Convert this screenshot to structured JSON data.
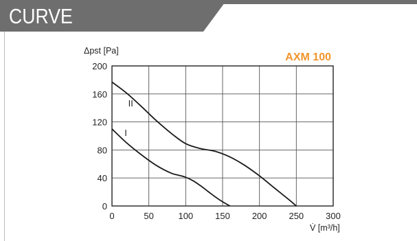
{
  "header": {
    "title": "CURVE",
    "bar_color": "#6e6e6e",
    "line_color": "#6e6e6e"
  },
  "chart_data": {
    "type": "line",
    "title": "AXM 100",
    "title_color": "#f0952b",
    "ylabel": "Δpst [Pa]",
    "xlabel": "V̇ [m³/h]",
    "xlim": [
      0,
      300
    ],
    "ylim": [
      0,
      200
    ],
    "x_ticks": [
      0,
      50,
      100,
      150,
      200,
      250,
      300
    ],
    "y_ticks": [
      0,
      40,
      80,
      120,
      160,
      200
    ],
    "grid": true,
    "series": [
      {
        "name": "II",
        "x": [
          0,
          20,
          40,
          60,
          80,
          100,
          120,
          140,
          160,
          180,
          200,
          220,
          240,
          250
        ],
        "y": [
          177,
          161,
          142,
          122,
          104,
          89,
          82,
          78,
          70,
          58,
          43,
          26,
          9,
          0
        ]
      },
      {
        "name": "I",
        "x": [
          0,
          20,
          40,
          60,
          80,
          90,
          100,
          110,
          120,
          130,
          140,
          150,
          160
        ],
        "y": [
          110,
          90,
          73,
          58,
          47,
          44,
          41,
          36,
          29,
          21,
          13,
          6,
          0
        ]
      }
    ]
  }
}
